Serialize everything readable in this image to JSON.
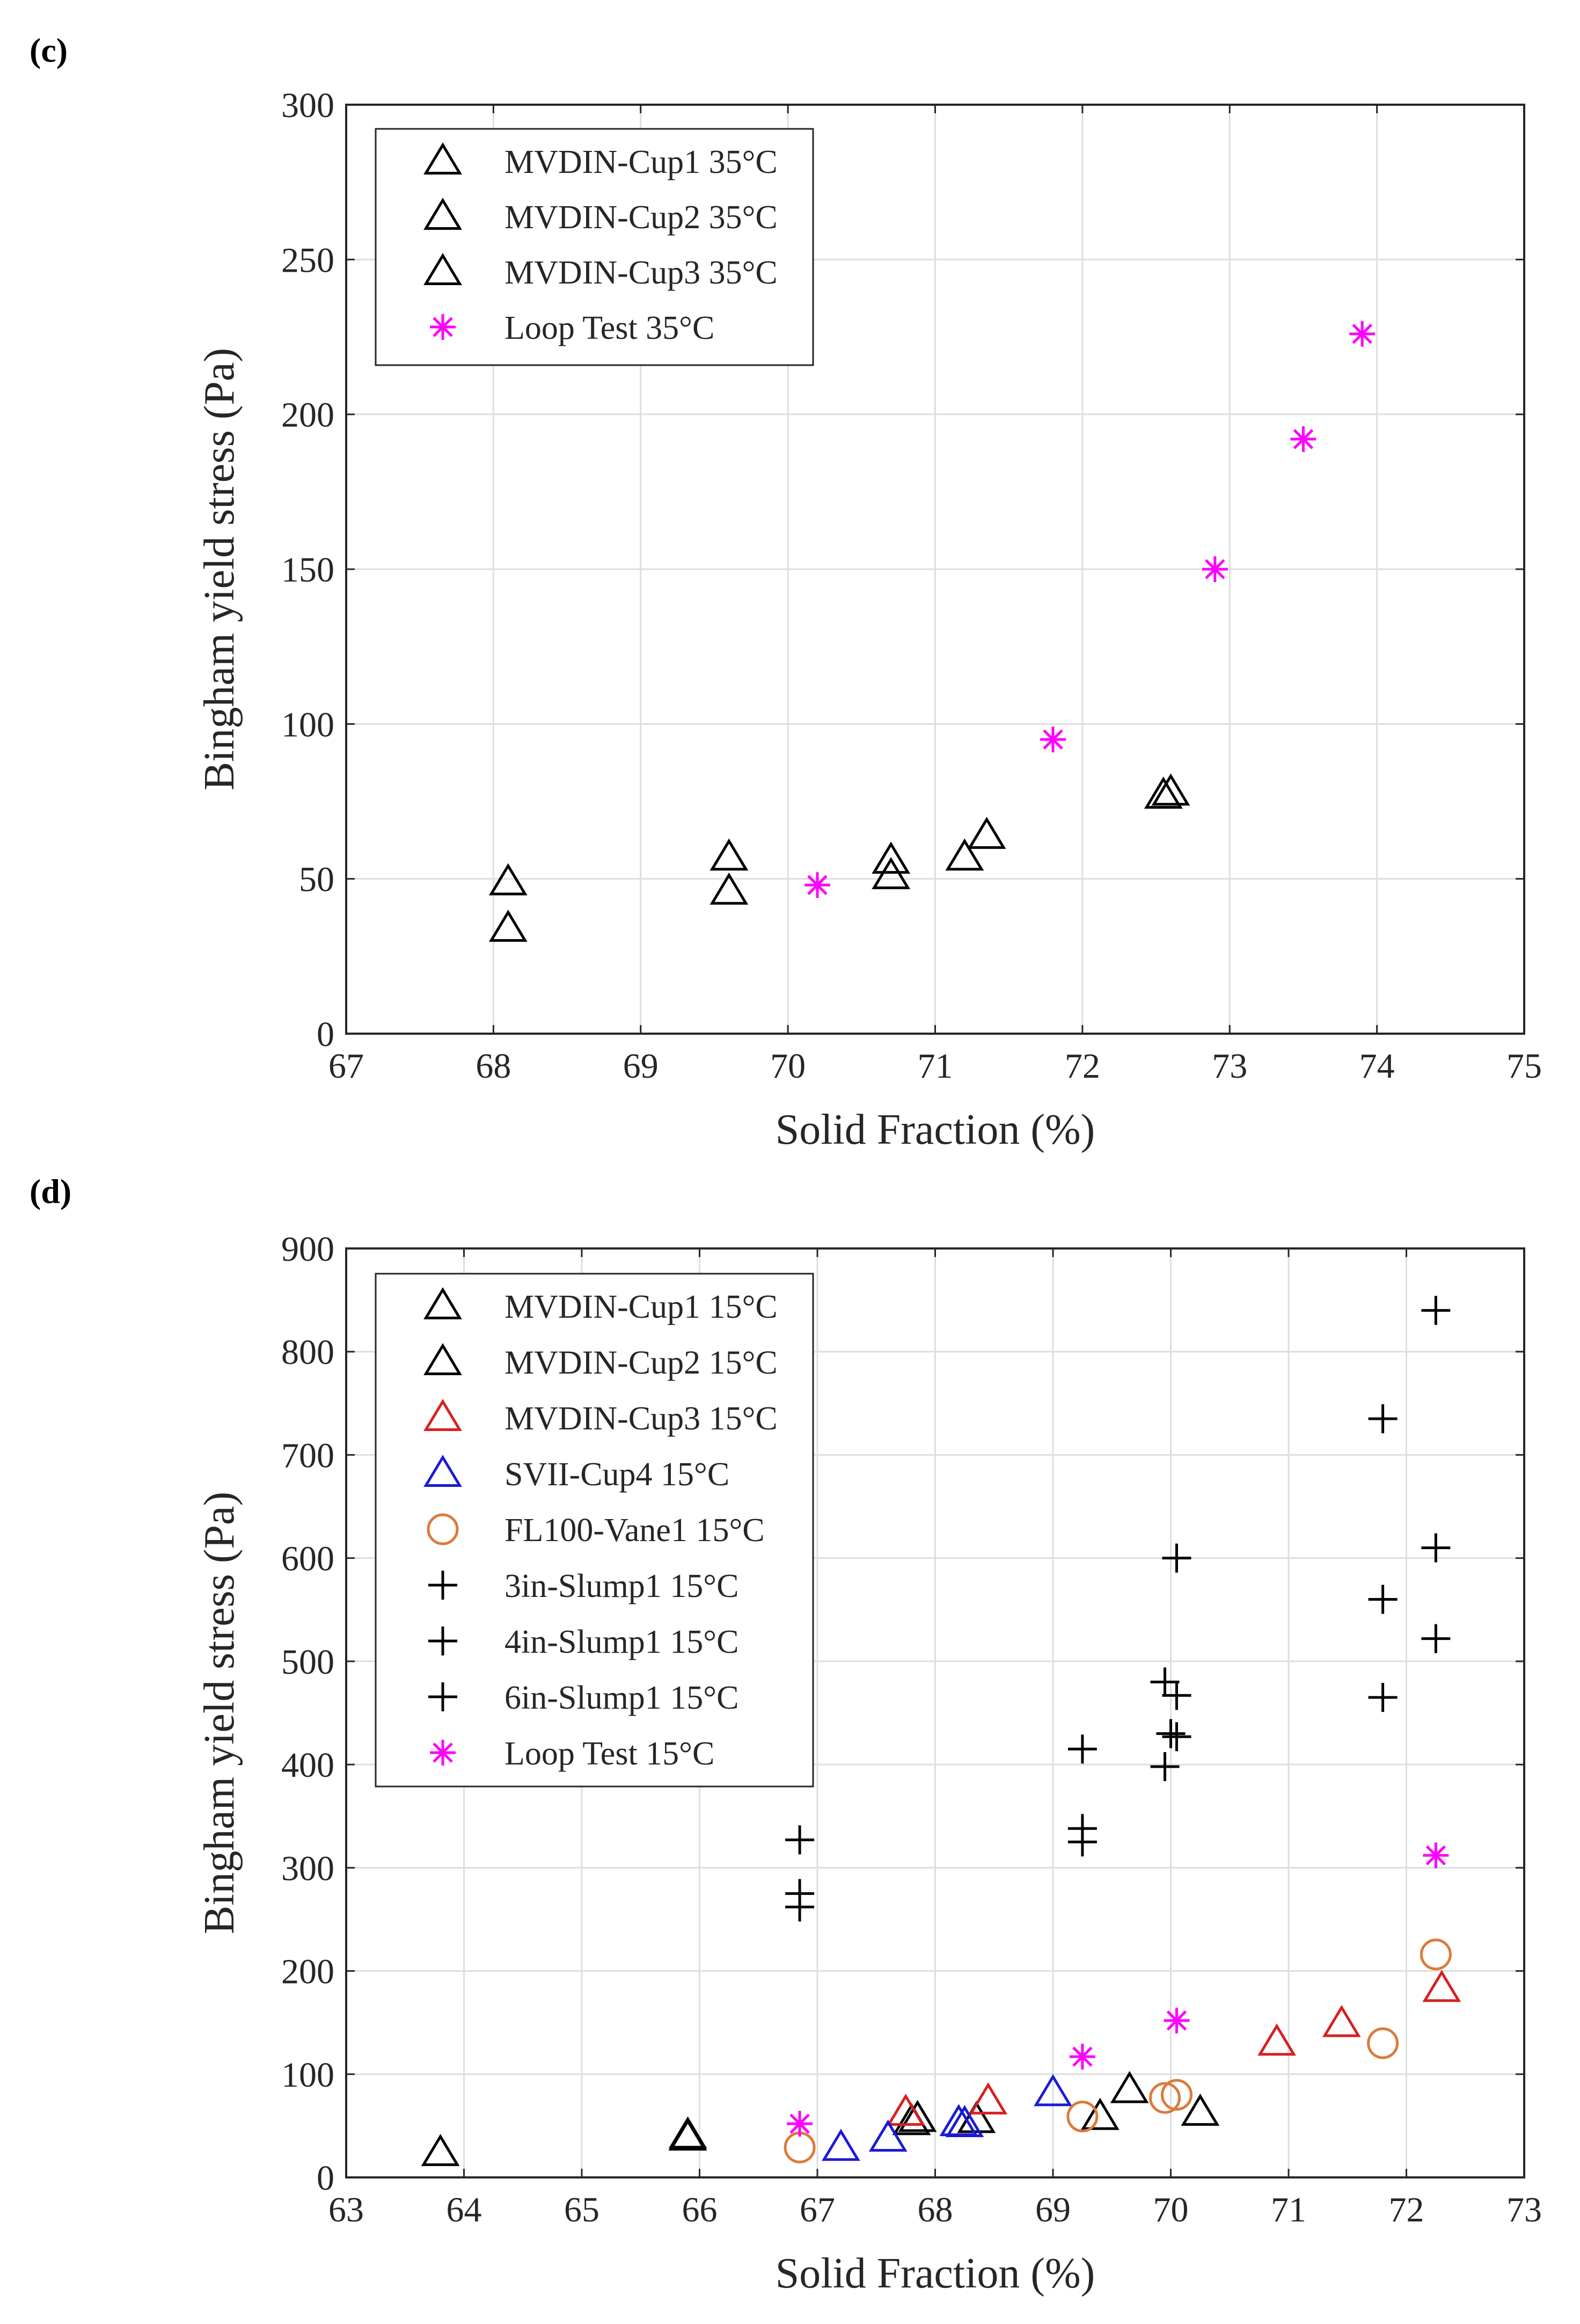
{
  "figure": {
    "panels": [
      "(c)",
      "(d)"
    ]
  },
  "chart_data": [
    {
      "type": "scatter",
      "panel": "(c)",
      "title": "",
      "xlabel": "Solid Fraction (%)",
      "ylabel": "Bingham yield stress (Pa)",
      "xlim": [
        67,
        75
      ],
      "ylim": [
        0,
        300
      ],
      "xticks": [
        67,
        68,
        69,
        70,
        71,
        72,
        73,
        74,
        75
      ],
      "yticks": [
        0,
        50,
        100,
        150,
        200,
        250,
        300
      ],
      "grid": true,
      "legend_position": "top-left",
      "series": [
        {
          "name": "MVDIN-Cup1 35°C",
          "marker": "triangle",
          "color": "#000000",
          "points": [
            [
              68.1,
              49
            ],
            [
              69.6,
              57
            ],
            [
              70.7,
              56
            ],
            [
              71.2,
              57
            ],
            [
              72.55,
              77
            ]
          ]
        },
        {
          "name": "MVDIN-Cup2 35°C",
          "marker": "triangle",
          "color": "#000000",
          "points": [
            [
              68.1,
              34
            ],
            [
              69.6,
              46
            ],
            [
              70.7,
              51
            ],
            [
              71.35,
              64
            ],
            [
              72.6,
              78
            ]
          ]
        },
        {
          "name": "MVDIN-Cup3 35°C",
          "marker": "triangle",
          "color": "#000000",
          "points": []
        },
        {
          "name": "Loop Test 35°C",
          "marker": "asterisk",
          "color": "#ff00ff",
          "points": [
            [
              70.2,
              48
            ],
            [
              71.8,
              95
            ],
            [
              72.9,
              150
            ],
            [
              73.5,
              192
            ],
            [
              73.9,
              226
            ]
          ]
        }
      ]
    },
    {
      "type": "scatter",
      "panel": "(d)",
      "title": "",
      "xlabel": "Solid Fraction (%)",
      "ylabel": "Bingham yield stress (Pa)",
      "xlim": [
        63,
        73
      ],
      "ylim": [
        0,
        900
      ],
      "xticks": [
        63,
        64,
        65,
        66,
        67,
        68,
        69,
        70,
        71,
        72,
        73
      ],
      "yticks": [
        0,
        100,
        200,
        300,
        400,
        500,
        600,
        700,
        800,
        900
      ],
      "grid": true,
      "legend_position": "top-left",
      "series": [
        {
          "name": "MVDIN-Cup1 15°C",
          "marker": "triangle",
          "color": "#000000",
          "points": [
            [
              63.8,
              24
            ],
            [
              65.9,
              39
            ],
            [
              67.85,
              57
            ],
            [
              68.35,
              56
            ],
            [
              69.65,
              85
            ],
            [
              70.25,
              63
            ]
          ]
        },
        {
          "name": "MVDIN-Cup2 15°C",
          "marker": "triangle",
          "color": "#000000",
          "points": [
            [
              65.9,
              41
            ],
            [
              67.8,
              54
            ],
            [
              69.4,
              59
            ]
          ]
        },
        {
          "name": "MVDIN-Cup3 15°C",
          "marker": "triangle",
          "color": "#d62020",
          "points": [
            [
              67.75,
              63
            ],
            [
              68.45,
              74
            ],
            [
              70.9,
              131
            ],
            [
              71.45,
              149
            ],
            [
              72.3,
              183
            ]
          ]
        },
        {
          "name": "SVII-Cup4 15°C",
          "marker": "triangle",
          "color": "#1a1ad6",
          "points": [
            [
              67.2,
              29
            ],
            [
              67.6,
              38
            ],
            [
              68.2,
              53
            ],
            [
              68.25,
              52
            ],
            [
              69.0,
              82
            ]
          ]
        },
        {
          "name": "FL100-Vane1 15°C",
          "marker": "circle",
          "color": "#dc7a3a",
          "points": [
            [
              66.85,
              29
            ],
            [
              69.25,
              59
            ],
            [
              69.95,
              77
            ],
            [
              70.05,
              80
            ],
            [
              71.8,
              130
            ],
            [
              72.25,
              216
            ]
          ]
        },
        {
          "name": "3in-Slump1 15°C",
          "marker": "plus",
          "color": "#000000",
          "points": [
            [
              66.85,
              327
            ],
            [
              69.25,
              415
            ],
            [
              69.95,
              480
            ],
            [
              70.05,
              600
            ],
            [
              71.8,
              735
            ],
            [
              72.25,
              840
            ]
          ]
        },
        {
          "name": "4in-Slump1 15°C",
          "marker": "plus",
          "color": "#000000",
          "points": [
            [
              66.85,
              275
            ],
            [
              69.25,
              338
            ],
            [
              70.0,
              430
            ],
            [
              70.05,
              467
            ],
            [
              71.8,
              560
            ],
            [
              72.25,
              610
            ]
          ]
        },
        {
          "name": "6in-Slump1 15°C",
          "marker": "plus",
          "color": "#000000",
          "points": [
            [
              66.85,
              262
            ],
            [
              69.25,
              325
            ],
            [
              69.95,
              398
            ],
            [
              70.05,
              427
            ],
            [
              71.8,
              465
            ],
            [
              72.25,
              522
            ]
          ]
        },
        {
          "name": "Loop Test 15°C",
          "marker": "asterisk",
          "color": "#ff00ff",
          "points": [
            [
              66.85,
              52
            ],
            [
              69.25,
              117
            ],
            [
              70.05,
              152
            ],
            [
              72.25,
              312
            ]
          ]
        }
      ]
    }
  ]
}
